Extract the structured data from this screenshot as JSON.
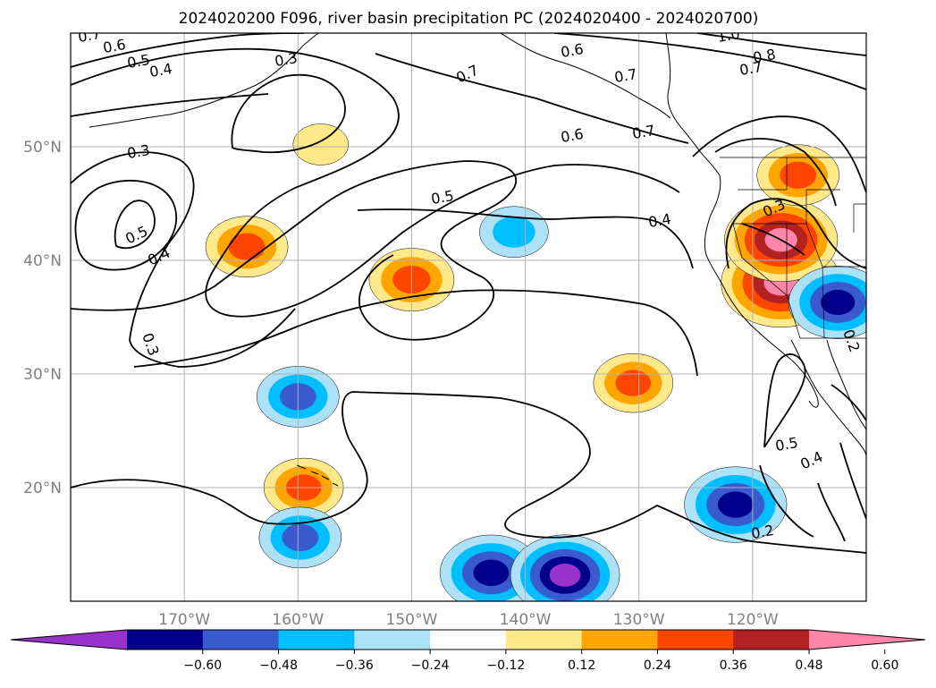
{
  "chart_data": {
    "type": "heatmap",
    "title": "2024020200 F096, river basin precipitation PC (2024020400 - 2024020700)",
    "map": {
      "lon_range": [
        -180,
        -110
      ],
      "lat_range": [
        10,
        60
      ],
      "grid": true,
      "lon_ticks": [
        {
          "value": -170,
          "label": "170°W"
        },
        {
          "value": -160,
          "label": "160°W"
        },
        {
          "value": -150,
          "label": "150°W"
        },
        {
          "value": -140,
          "label": "140°W"
        },
        {
          "value": -130,
          "label": "130°W"
        },
        {
          "value": -120,
          "label": "120°W"
        }
      ],
      "lat_ticks": [
        {
          "value": 20,
          "label": "20°N"
        },
        {
          "value": 30,
          "label": "30°N"
        },
        {
          "value": 40,
          "label": "40°N"
        },
        {
          "value": 50,
          "label": "50°N"
        }
      ]
    },
    "colorbar": {
      "orientation": "horizontal",
      "extend": "both",
      "boundaries": [
        -0.6,
        -0.48,
        -0.36,
        -0.24,
        -0.12,
        0.12,
        0.24,
        0.36,
        0.48,
        0.6
      ],
      "tick_labels": [
        "−0.60",
        "−0.48",
        "−0.36",
        "−0.24",
        "−0.12",
        "0.12",
        "0.24",
        "0.36",
        "0.48",
        "0.60"
      ],
      "colors": [
        "#9932CC",
        "#00008B",
        "#3A5ACF",
        "#00BFFF",
        "#ADE1F8",
        "#FFFFFF",
        "#FFE98A",
        "#FFA500",
        "#FF4500",
        "#B22222",
        "#FF85AA"
      ]
    },
    "contour_labels": [
      "0.7",
      "0.6",
      "0.5",
      "0.4",
      "0.3",
      "0.7",
      "0.6",
      "0.7",
      "1.0",
      "0.8",
      "0.7",
      "0.6",
      "0.7",
      "0.3",
      "0.5",
      "0.4",
      "0.5",
      "0.4",
      "0.3",
      "0.3",
      "0.2",
      "0.5",
      "0.4",
      "0.2"
    ],
    "anomalies": [
      {
        "lon": -158,
        "lat": 50.2,
        "value": 0.2
      },
      {
        "lon": -164.5,
        "lat": 41.2,
        "value": 0.4
      },
      {
        "lon": -150,
        "lat": 38.3,
        "value": 0.42
      },
      {
        "lon": -141,
        "lat": 42.5,
        "value": -0.3
      },
      {
        "lon": -130.5,
        "lat": 29.2,
        "value": 0.38
      },
      {
        "lon": -117.5,
        "lat": 38,
        "value": 0.68
      },
      {
        "lon": -117.5,
        "lat": 41.8,
        "value": 0.63
      },
      {
        "lon": -112.5,
        "lat": 36.3,
        "value": -0.52
      },
      {
        "lon": -121.5,
        "lat": 18.5,
        "value": -0.55
      },
      {
        "lon": -160,
        "lat": 28,
        "value": -0.4
      },
      {
        "lon": -159.5,
        "lat": 20,
        "value": 0.38
      },
      {
        "lon": -159.8,
        "lat": 15.6,
        "value": -0.4
      },
      {
        "lon": -143,
        "lat": 12.5,
        "value": -0.55
      },
      {
        "lon": -136.5,
        "lat": 12.3,
        "value": -0.6
      },
      {
        "lon": -116,
        "lat": 47.5,
        "value": 0.4
      }
    ]
  }
}
